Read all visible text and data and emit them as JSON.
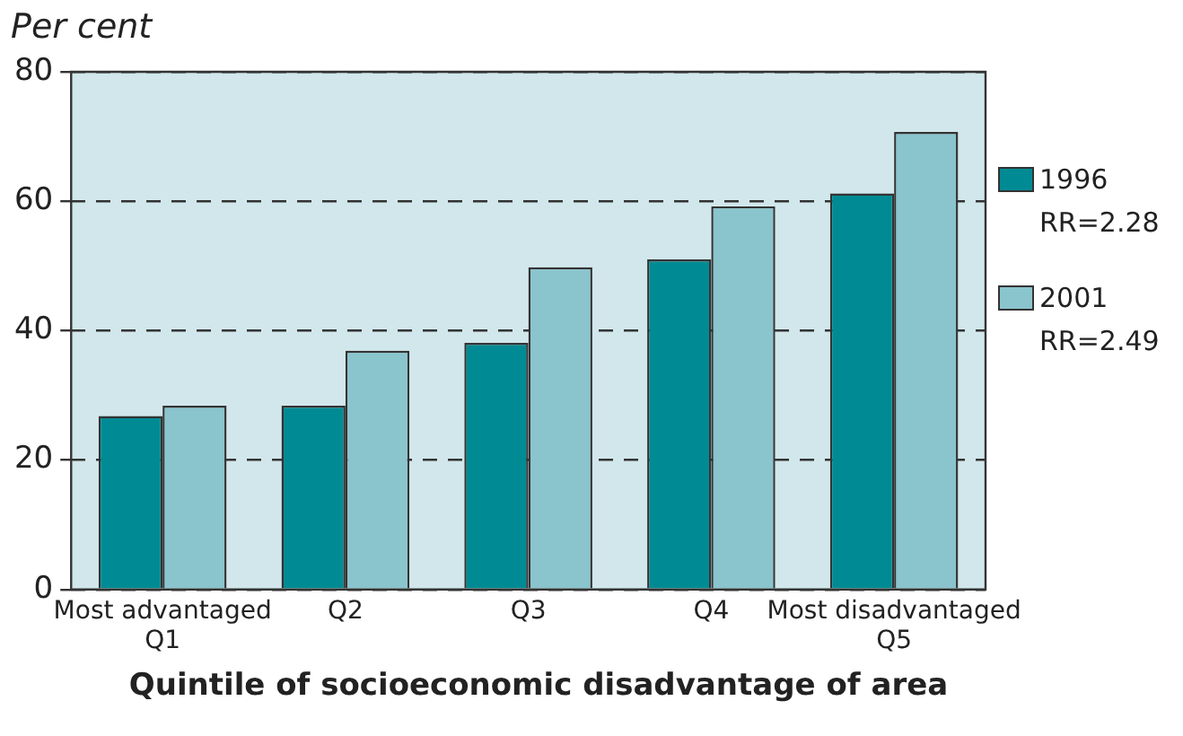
{
  "chart_data": {
    "type": "bar",
    "ylabel": "Per cent",
    "xlabel": "Quintile of socioeconomic disadvantage of area",
    "categories": [
      "Most advantaged\nQ1",
      "Q2",
      "Q3",
      "Q4",
      "Most disadvantaged\nQ5"
    ],
    "series": [
      {
        "name": "1996\nRR=2.28",
        "color": "#008b94",
        "values": [
          26.8,
          28.4,
          38.1,
          51.0,
          61.2
        ]
      },
      {
        "name": "2001\nRR=2.49",
        "color": "#8ac4cd",
        "values": [
          28.4,
          36.9,
          49.8,
          59.2,
          70.7
        ]
      }
    ],
    "ylim": [
      0,
      80
    ],
    "yticks": [
      0,
      20,
      40,
      60,
      80
    ],
    "grid": "y",
    "legend": "right"
  }
}
